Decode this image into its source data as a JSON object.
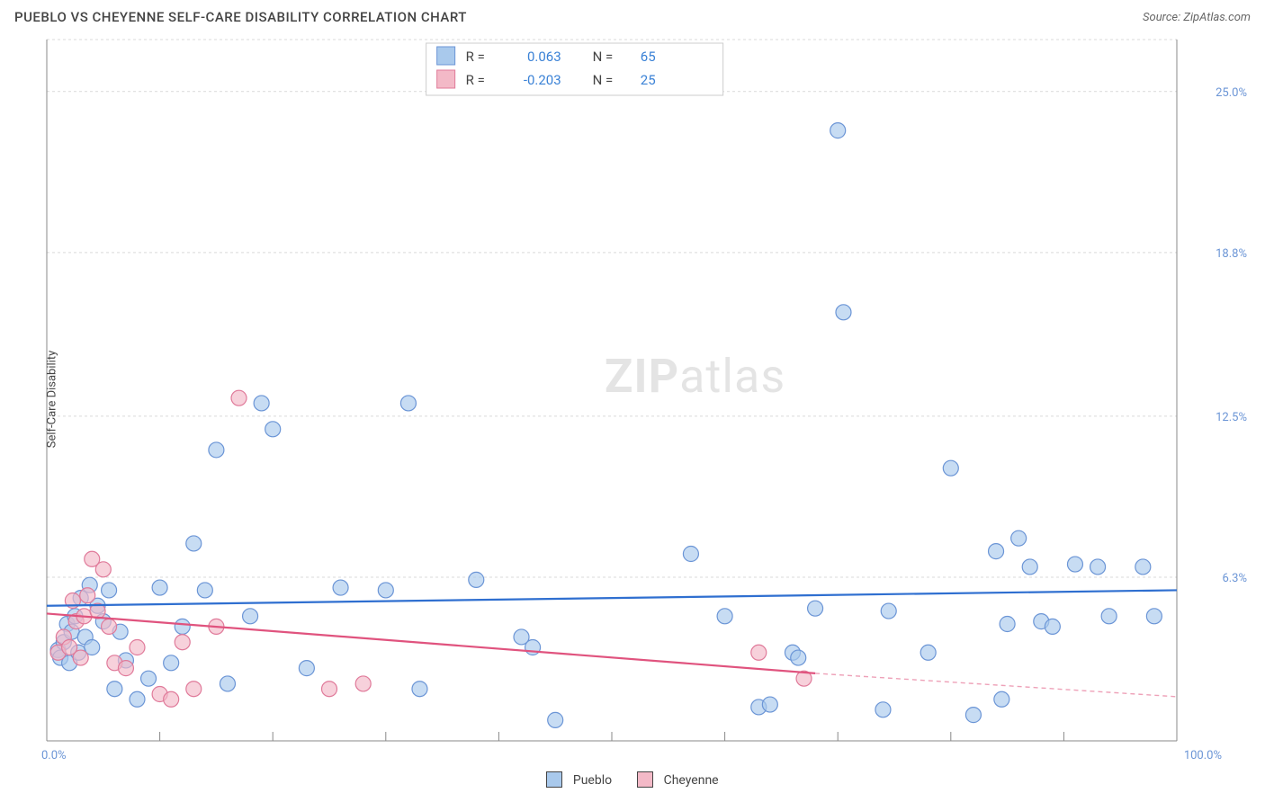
{
  "header": {
    "title": "PUEBLO VS CHEYENNE SELF-CARE DISABILITY CORRELATION CHART",
    "source": "Source: ZipAtlas.com"
  },
  "ylabel": "Self-Care Disability",
  "watermark": {
    "bold": "ZIP",
    "light": "atlas"
  },
  "chart": {
    "type": "scatter",
    "xlim": [
      0,
      100
    ],
    "ylim": [
      0,
      27
    ],
    "y_ticks": [
      {
        "v": 6.3,
        "label": "6.3%"
      },
      {
        "v": 12.5,
        "label": "12.5%"
      },
      {
        "v": 18.8,
        "label": "18.8%"
      },
      {
        "v": 25.0,
        "label": "25.0%"
      }
    ],
    "x_edge_labels": {
      "min": "0.0%",
      "max": "100.0%"
    },
    "x_tick_positions": [
      10,
      20,
      30,
      40,
      50,
      60,
      70,
      80,
      90
    ],
    "marker_radius": 8.5,
    "background_color": "#ffffff",
    "grid_color": "#d9d9d9",
    "series": [
      {
        "key": "pueblo",
        "label": "Pueblo",
        "color_fill": "#a9c9ec",
        "color_stroke": "#6b95d6",
        "R": "0.063",
        "N": "65",
        "trend": {
          "x1": 0,
          "y1": 5.2,
          "x2": 100,
          "y2": 5.8,
          "color": "#2f6fd0"
        },
        "points": [
          [
            1.0,
            3.5
          ],
          [
            1.2,
            3.2
          ],
          [
            1.5,
            3.8
          ],
          [
            1.8,
            4.5
          ],
          [
            2.0,
            3.0
          ],
          [
            2.2,
            4.2
          ],
          [
            2.5,
            4.8
          ],
          [
            2.8,
            3.4
          ],
          [
            3.0,
            5.5
          ],
          [
            3.4,
            4.0
          ],
          [
            3.8,
            6.0
          ],
          [
            4.0,
            3.6
          ],
          [
            4.5,
            5.2
          ],
          [
            5.0,
            4.6
          ],
          [
            5.5,
            5.8
          ],
          [
            6.0,
            2.0
          ],
          [
            6.5,
            4.2
          ],
          [
            7.0,
            3.1
          ],
          [
            8.0,
            1.6
          ],
          [
            9.0,
            2.4
          ],
          [
            10.0,
            5.9
          ],
          [
            11.0,
            3.0
          ],
          [
            12.0,
            4.4
          ],
          [
            13.0,
            7.6
          ],
          [
            14.0,
            5.8
          ],
          [
            15.0,
            11.2
          ],
          [
            16.0,
            2.2
          ],
          [
            18.0,
            4.8
          ],
          [
            19.0,
            13.0
          ],
          [
            20.0,
            12.0
          ],
          [
            23.0,
            2.8
          ],
          [
            26.0,
            5.9
          ],
          [
            30.0,
            5.8
          ],
          [
            32.0,
            13.0
          ],
          [
            33.0,
            2.0
          ],
          [
            38.0,
            6.2
          ],
          [
            42.0,
            4.0
          ],
          [
            43.0,
            3.6
          ],
          [
            45.0,
            0.8
          ],
          [
            57.0,
            7.2
          ],
          [
            60.0,
            4.8
          ],
          [
            63.0,
            1.3
          ],
          [
            64.0,
            1.4
          ],
          [
            66.0,
            3.4
          ],
          [
            66.5,
            3.2
          ],
          [
            68.0,
            5.1
          ],
          [
            70.0,
            23.5
          ],
          [
            70.5,
            16.5
          ],
          [
            74.0,
            1.2
          ],
          [
            74.5,
            5.0
          ],
          [
            78.0,
            3.4
          ],
          [
            80.0,
            10.5
          ],
          [
            82.0,
            1.0
          ],
          [
            84.0,
            7.3
          ],
          [
            85.0,
            4.5
          ],
          [
            86.0,
            7.8
          ],
          [
            87.0,
            6.7
          ],
          [
            88.0,
            4.6
          ],
          [
            89.0,
            4.4
          ],
          [
            91.0,
            6.8
          ],
          [
            93.0,
            6.7
          ],
          [
            94.0,
            4.8
          ],
          [
            97.0,
            6.7
          ],
          [
            98.0,
            4.8
          ],
          [
            84.5,
            1.6
          ]
        ]
      },
      {
        "key": "cheyenne",
        "label": "Cheyenne",
        "color_fill": "#f3b9c7",
        "color_stroke": "#e07a9a",
        "R": "-0.203",
        "N": "25",
        "trend": {
          "x1": 0,
          "y1": 4.9,
          "x2": 68,
          "y2": 2.6,
          "ext_x2": 100,
          "ext_y2": 1.7,
          "color": "#e0537e"
        },
        "points": [
          [
            1.0,
            3.4
          ],
          [
            1.5,
            4.0
          ],
          [
            2.0,
            3.6
          ],
          [
            2.3,
            5.4
          ],
          [
            2.6,
            4.6
          ],
          [
            3.0,
            3.2
          ],
          [
            3.3,
            4.8
          ],
          [
            3.6,
            5.6
          ],
          [
            4.0,
            7.0
          ],
          [
            4.5,
            5.0
          ],
          [
            5.0,
            6.6
          ],
          [
            5.5,
            4.4
          ],
          [
            6.0,
            3.0
          ],
          [
            7.0,
            2.8
          ],
          [
            8.0,
            3.6
          ],
          [
            10.0,
            1.8
          ],
          [
            11.0,
            1.6
          ],
          [
            12.0,
            3.8
          ],
          [
            13.0,
            2.0
          ],
          [
            15.0,
            4.4
          ],
          [
            17.0,
            13.2
          ],
          [
            25.0,
            2.0
          ],
          [
            28.0,
            2.2
          ],
          [
            63.0,
            3.4
          ],
          [
            67.0,
            2.4
          ]
        ]
      }
    ]
  },
  "legend_top": {
    "rows": [
      {
        "swatch": "blue",
        "R_label": "R =",
        "R": "0.063",
        "N_label": "N =",
        "N": "65"
      },
      {
        "swatch": "pink",
        "R_label": "R =",
        "R": "-0.203",
        "N_label": "N =",
        "N": "25"
      }
    ]
  },
  "legend_bottom": [
    {
      "swatch": "blue",
      "label": "Pueblo"
    },
    {
      "swatch": "pink",
      "label": "Cheyenne"
    }
  ]
}
